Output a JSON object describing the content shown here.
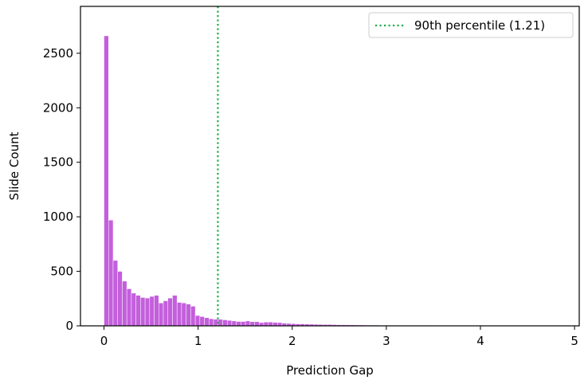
{
  "chart_data": {
    "type": "bar",
    "title": "",
    "xlabel": "Prediction Gap",
    "ylabel": "Slide Count",
    "xlim": [
      -0.25,
      5.05
    ],
    "ylim": [
      0,
      2930
    ],
    "xticks": [
      0,
      1,
      2,
      3,
      4,
      5
    ],
    "yticks": [
      0,
      500,
      1000,
      1500,
      2000,
      2500
    ],
    "xtick_labels": [
      "0",
      "1",
      "2",
      "3",
      "4",
      "5"
    ],
    "ytick_labels": [
      "0",
      "500",
      "1000",
      "1500",
      "2000",
      "2500"
    ],
    "bin_start": 0,
    "bin_width": 0.0485,
    "values": [
      2660,
      970,
      600,
      500,
      410,
      340,
      300,
      280,
      260,
      255,
      270,
      280,
      210,
      230,
      255,
      280,
      215,
      210,
      200,
      180,
      95,
      85,
      75,
      65,
      60,
      60,
      55,
      50,
      45,
      40,
      40,
      45,
      38,
      38,
      30,
      35,
      35,
      32,
      30,
      25,
      22,
      20,
      18,
      18,
      16,
      15,
      14,
      13,
      12,
      12,
      11,
      10,
      10,
      9,
      9,
      8,
      8,
      7,
      7,
      7,
      6,
      6,
      6,
      5,
      5,
      5,
      5,
      4,
      4,
      4,
      4,
      3,
      3,
      3,
      3,
      3,
      3,
      3,
      2,
      2,
      2,
      2,
      2,
      2,
      2,
      2,
      2,
      2,
      2,
      1,
      1,
      1,
      1,
      1,
      1,
      1,
      1,
      1,
      1
    ],
    "bar_color": "#c35fdc",
    "bar_edge_color": "#ffffff",
    "reference_line": {
      "x": 1.21,
      "label": "90th percentile (1.21)",
      "color": "#1fae4b",
      "style": "dotted"
    },
    "legend_position": "top-right",
    "grid": false
  }
}
